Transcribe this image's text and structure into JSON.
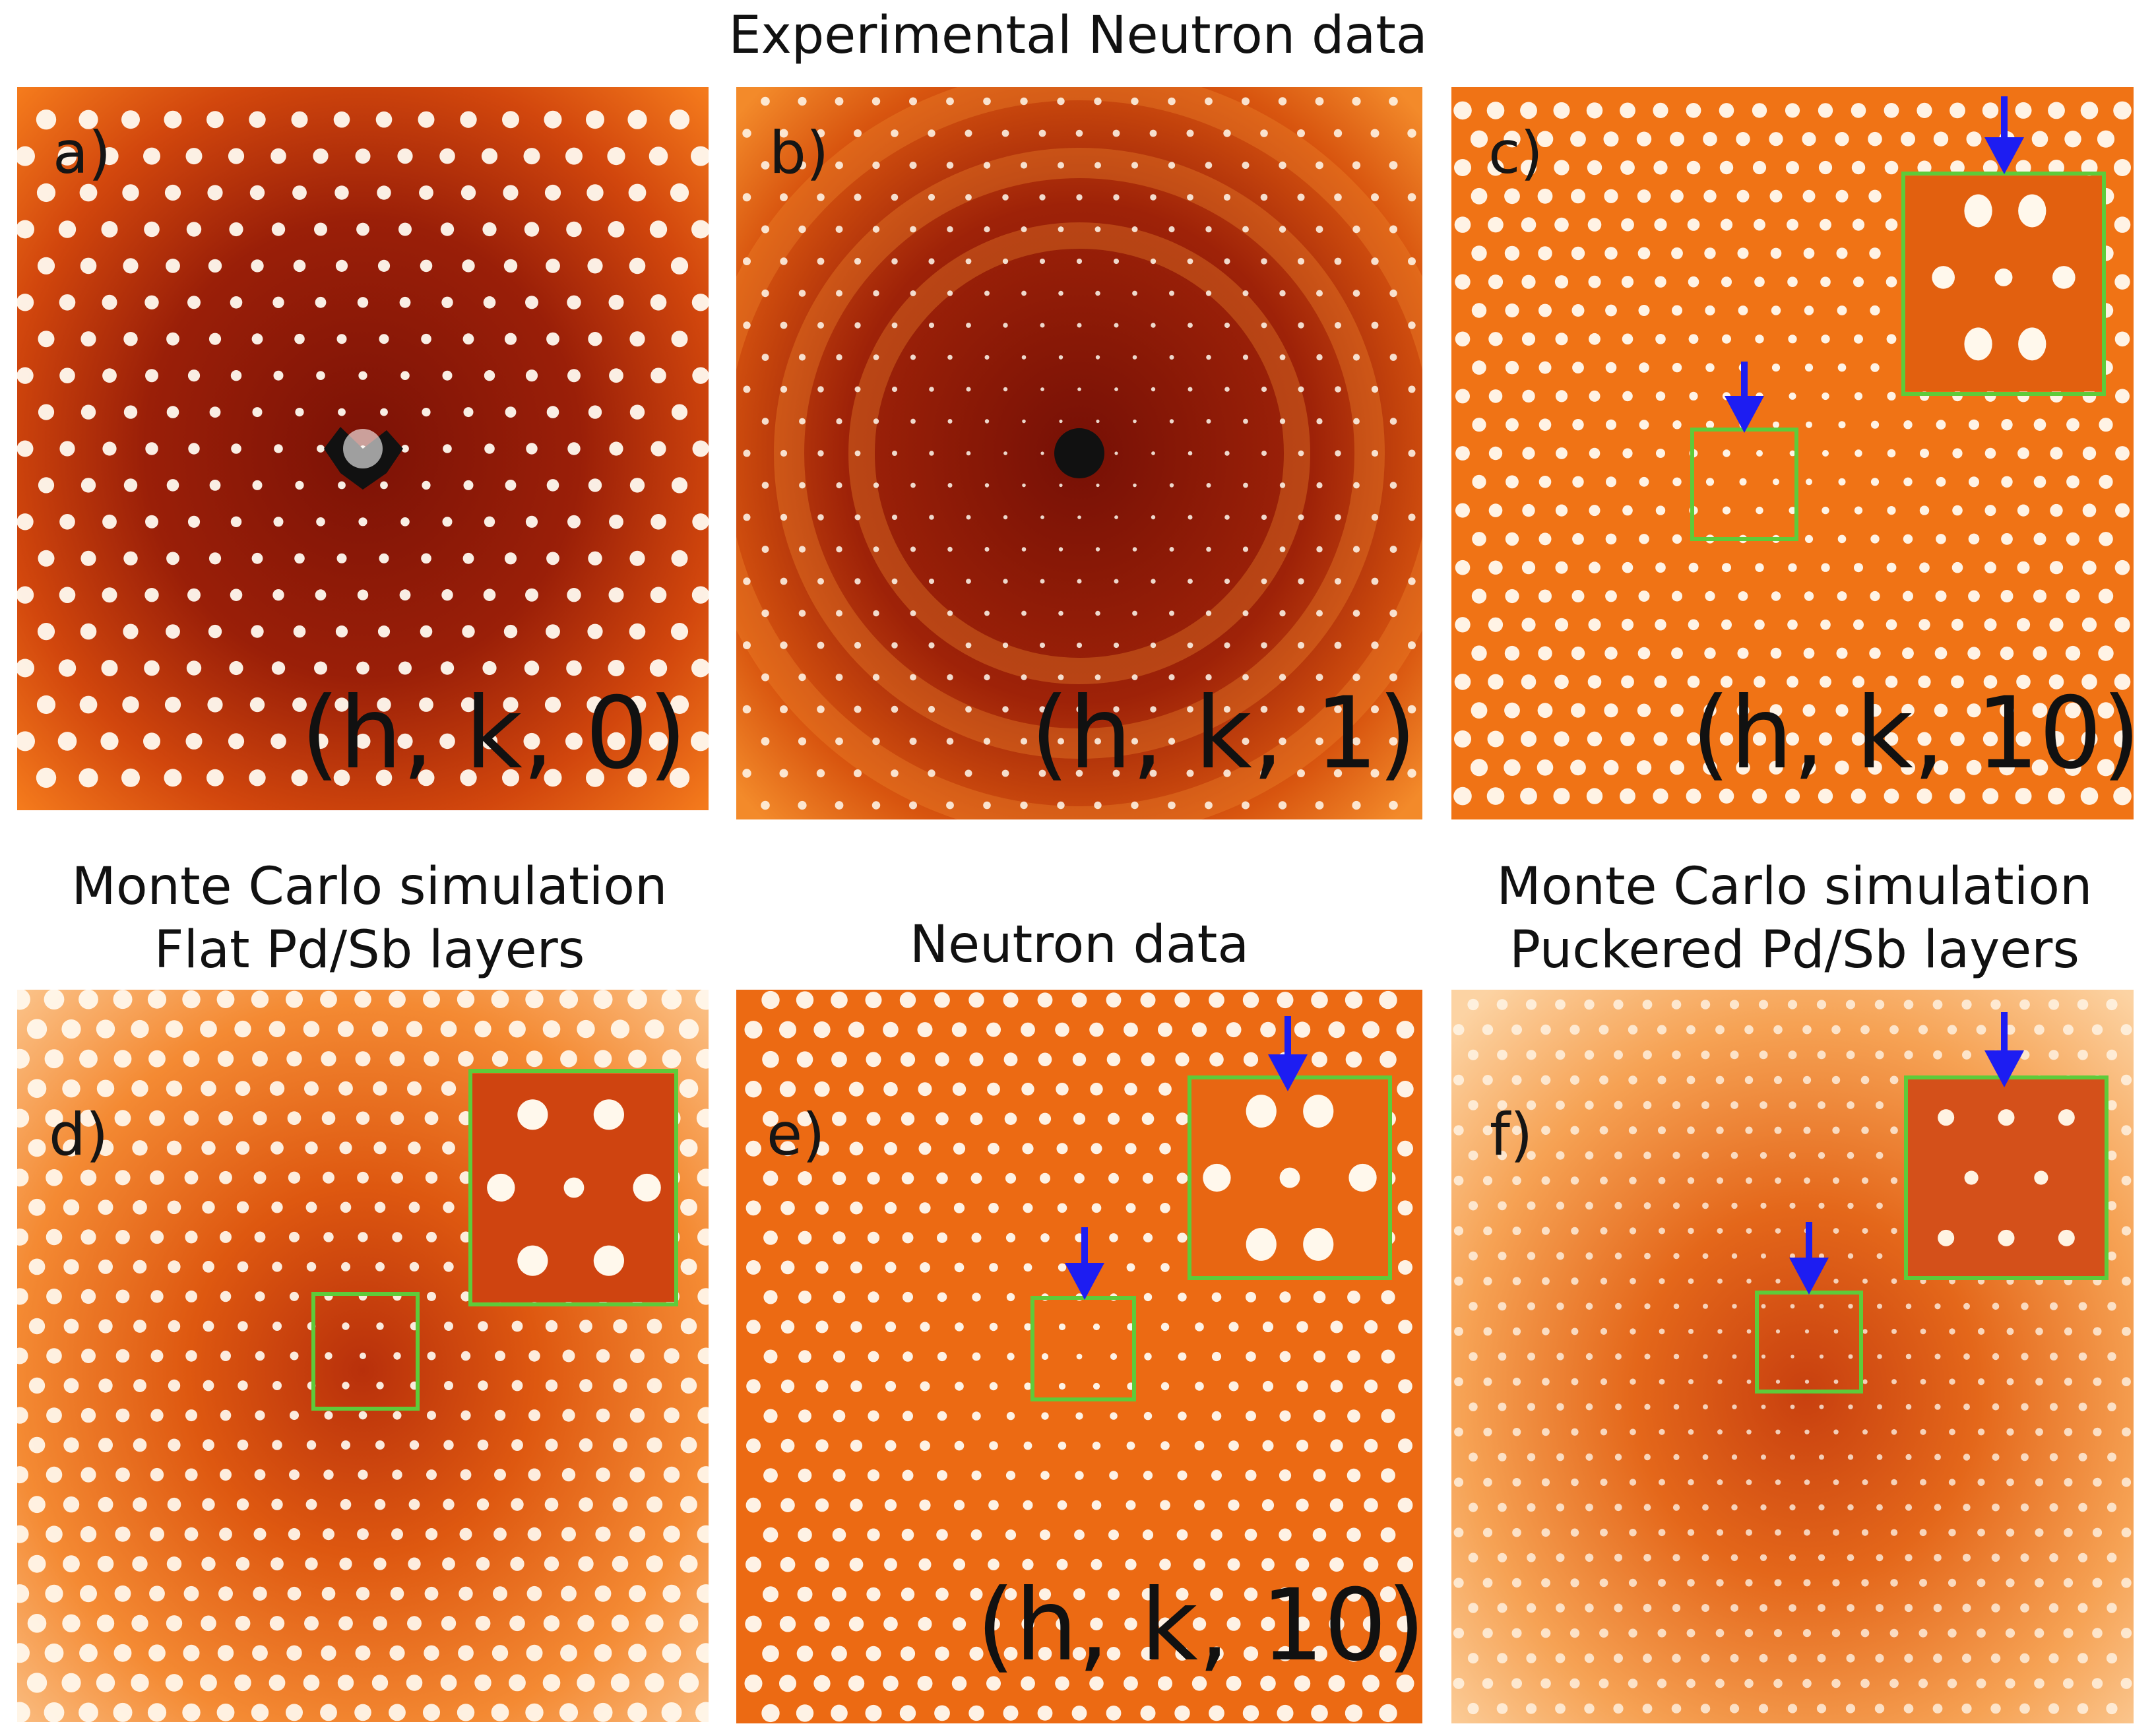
{
  "header": {
    "title": "Experimental Neutron data"
  },
  "panels": {
    "a": {
      "label": "a)",
      "hkl": "(h, k, 0)"
    },
    "b": {
      "label": "b)",
      "hkl": "(h, k, 1)"
    },
    "c": {
      "label": "c)",
      "hkl": "(h, k, 10)"
    },
    "d": {
      "label": "d)",
      "title_line1": "Monte Carlo simulation",
      "title_line2": "Flat Pd/Sb layers"
    },
    "e": {
      "label": "e)",
      "title_line1": "Neutron data",
      "hkl": "(h, k, 10)"
    },
    "f": {
      "label": "f)",
      "title_line1": "Monte Carlo simulation",
      "title_line2": "Puckered Pd/Sb layers"
    }
  },
  "colors": {
    "dark_red": "#8a1608",
    "orange": "#f26a0f",
    "light_orange": "#f9b56c",
    "spot": "#fffaf0",
    "box": "#5ecb3a",
    "arrow": "#1d1df2"
  }
}
